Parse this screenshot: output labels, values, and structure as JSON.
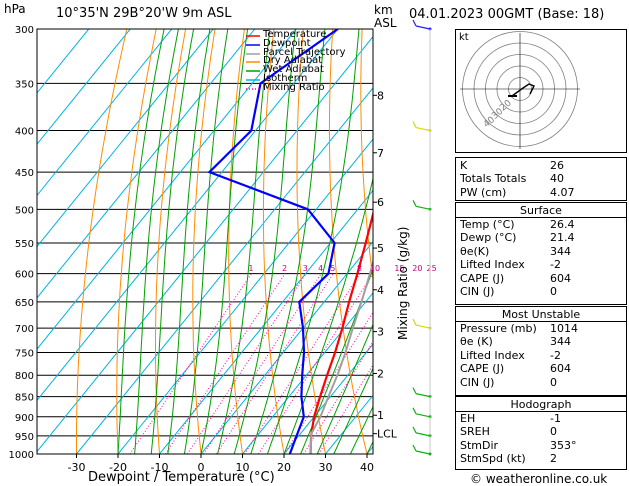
{
  "header": {
    "hpa": "hPa",
    "location": "10°35'N  29B°20'W  9m  ASL",
    "km_asl": "km\nASL",
    "km": "km",
    "asl": "ASL",
    "datetime": "04.01.2023  00GMT  (Base: 18)"
  },
  "chart_data": {
    "type": "line",
    "xlabel": "Dewpoint / Temperature (°C)",
    "ylabel_right": "Mixing Ratio (g/kg)",
    "x_ticks": [
      -30,
      -20,
      -10,
      0,
      10,
      20,
      30,
      40
    ],
    "pressure_levels": [
      300,
      350,
      400,
      450,
      500,
      550,
      600,
      650,
      700,
      750,
      800,
      850,
      900,
      950,
      1000
    ],
    "km_ticks": [
      {
        "label": "8",
        "p": 362
      },
      {
        "label": "7",
        "p": 426
      },
      {
        "label": "6",
        "p": 490
      },
      {
        "label": "5",
        "p": 558
      },
      {
        "label": "4",
        "p": 628
      },
      {
        "label": "3",
        "p": 707
      },
      {
        "label": "2",
        "p": 796
      },
      {
        "label": "1",
        "p": 896
      },
      {
        "label": "LCL",
        "p": 944
      }
    ],
    "mixing_ratio_labels": [
      "1",
      "2",
      "3",
      "4",
      "5",
      "8",
      "10",
      "15",
      "20",
      "25"
    ],
    "mixing_ratio_values": [
      1,
      2,
      3,
      4,
      5,
      8,
      10,
      15,
      20,
      25
    ],
    "legend": [
      "Temperature",
      "Dewpoint",
      "Parcel Trajectory",
      "Dry Adiabat",
      "Wet Adiabat",
      "Isotherm",
      "Mixing Ratio"
    ],
    "series": [
      {
        "name": "Temperature",
        "color": "#ff0000",
        "points": [
          [
            1000,
            26.4
          ],
          [
            950,
            23
          ],
          [
            900,
            20
          ],
          [
            850,
            17.5
          ],
          [
            800,
            15
          ],
          [
            750,
            12.5
          ],
          [
            700,
            9.5
          ],
          [
            650,
            6
          ],
          [
            600,
            2.5
          ],
          [
            550,
            -1.5
          ],
          [
            500,
            -6
          ],
          [
            450,
            -11
          ],
          [
            400,
            -17.5
          ],
          [
            350,
            -25
          ],
          [
            300,
            -33.5
          ]
        ]
      },
      {
        "name": "Dewpoint",
        "color": "#0000ff",
        "points": [
          [
            1000,
            21.4
          ],
          [
            950,
            19.5
          ],
          [
            900,
            17.5
          ],
          [
            850,
            13
          ],
          [
            800,
            9
          ],
          [
            750,
            5
          ],
          [
            700,
            0
          ],
          [
            650,
            -6
          ],
          [
            600,
            -4.5
          ],
          [
            550,
            -9
          ],
          [
            500,
            -22
          ],
          [
            450,
            -53
          ],
          [
            400,
            -51
          ],
          [
            350,
            -58
          ],
          [
            300,
            -50
          ]
        ]
      },
      {
        "name": "Parcel Trajectory",
        "color": "#a0a0a0",
        "points": [
          [
            1000,
            26.4
          ],
          [
            944,
            22.6
          ],
          [
            900,
            21.5
          ],
          [
            850,
            19.5
          ],
          [
            800,
            17.5
          ],
          [
            750,
            15
          ],
          [
            700,
            12
          ],
          [
            650,
            9
          ],
          [
            600,
            5.5
          ],
          [
            550,
            1.5
          ],
          [
            500,
            -3
          ],
          [
            450,
            -8.5
          ],
          [
            400,
            -15
          ],
          [
            350,
            -23
          ],
          [
            300,
            -32
          ]
        ]
      }
    ]
  },
  "hodograph": {
    "unit": "kt",
    "ring_labels": [
      "40",
      "30",
      "20"
    ]
  },
  "indices": {
    "rows": [
      {
        "k": "K",
        "v": "26"
      },
      {
        "k": "Totals Totals",
        "v": "40"
      },
      {
        "k": "PW (cm)",
        "v": "4.07"
      }
    ],
    "surface": {
      "title": "Surface",
      "rows": [
        {
          "k": "Temp (°C)",
          "v": "26.4"
        },
        {
          "k": "Dewp (°C)",
          "v": "21.4"
        },
        {
          "k": "θe(K)",
          "v": "344"
        },
        {
          "k": "Lifted Index",
          "v": "-2"
        },
        {
          "k": "CAPE (J)",
          "v": "604"
        },
        {
          "k": "CIN (J)",
          "v": "0"
        }
      ]
    },
    "most_unstable": {
      "title": "Most Unstable",
      "rows": [
        {
          "k": "Pressure (mb)",
          "v": "1014"
        },
        {
          "k": "θe (K)",
          "v": "344"
        },
        {
          "k": "Lifted Index",
          "v": "-2"
        },
        {
          "k": "CAPE (J)",
          "v": "604"
        },
        {
          "k": "CIN (J)",
          "v": "0"
        }
      ]
    },
    "hodograph": {
      "title": "Hodograph",
      "rows": [
        {
          "k": "EH",
          "v": "-1"
        },
        {
          "k": "SREH",
          "v": "0"
        },
        {
          "k": "StmDir",
          "v": "353°"
        },
        {
          "k": "StmSpd (kt)",
          "v": "2"
        }
      ]
    }
  },
  "footer": {
    "credit": "© weatheronline.co.uk"
  }
}
